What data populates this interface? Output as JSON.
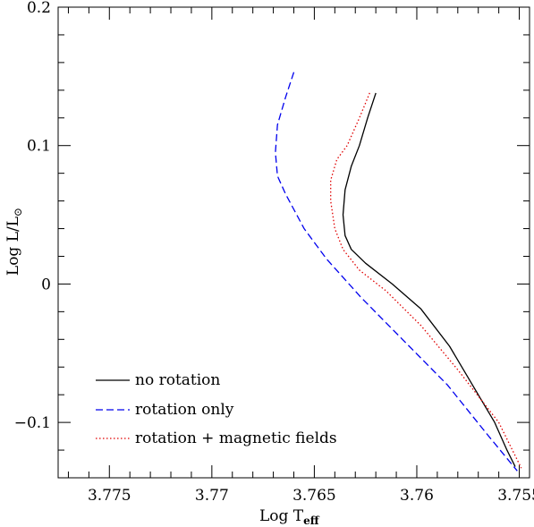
{
  "chart_data": {
    "type": "line",
    "xlabel": "Log T",
    "xlabel_sub": "eff",
    "ylabel": "Log L/L",
    "ylabel_sub": "⊙",
    "xlim": [
      3.7775,
      3.7545
    ],
    "ylim": [
      -0.14,
      0.2
    ],
    "x_inverted": true,
    "x_ticks": [
      3.775,
      3.77,
      3.765,
      3.76,
      3.755
    ],
    "x_tick_labels": [
      "3.775",
      "3.77",
      "3.765",
      "3.76",
      "3.755"
    ],
    "y_ticks": [
      -0.1,
      0,
      0.1,
      0.2
    ],
    "y_tick_labels": [
      "−0.1",
      "0",
      "0.1",
      "0.2"
    ],
    "grid": false,
    "legend_position": "bottom-left",
    "series": [
      {
        "name": "no rotation",
        "color": "#000000",
        "style": "solid",
        "x": [
          3.762,
          3.7624,
          3.7628,
          3.7632,
          3.7635,
          3.7636,
          3.7635,
          3.7632,
          3.7625,
          3.7612,
          3.7598,
          3.7584,
          3.7572,
          3.7562,
          3.7556,
          3.7552
        ],
        "y": [
          0.138,
          0.12,
          0.1,
          0.085,
          0.068,
          0.05,
          0.035,
          0.025,
          0.015,
          0.0,
          -0.018,
          -0.045,
          -0.075,
          -0.1,
          -0.12,
          -0.132
        ]
      },
      {
        "name": "rotation only",
        "color": "#0000ee",
        "style": "dashed",
        "x": [
          3.766,
          3.7664,
          3.7668,
          3.7669,
          3.7668,
          3.7664,
          3.7655,
          3.7644,
          3.7627,
          3.7607,
          3.7585,
          3.7566,
          3.7551
        ],
        "y": [
          0.153,
          0.135,
          0.115,
          0.095,
          0.078,
          0.065,
          0.04,
          0.018,
          -0.01,
          -0.04,
          -0.073,
          -0.108,
          -0.135
        ]
      },
      {
        "name": "rotation + magnetic fields",
        "color": "#e00000",
        "style": "dotted",
        "x": [
          3.7623,
          3.7628,
          3.7634,
          3.7639,
          3.7642,
          3.7642,
          3.764,
          3.7636,
          3.7628,
          3.7615,
          3.7598,
          3.758,
          3.756,
          3.7549
        ],
        "y": [
          0.138,
          0.12,
          0.1,
          0.09,
          0.075,
          0.06,
          0.04,
          0.025,
          0.01,
          -0.005,
          -0.03,
          -0.062,
          -0.1,
          -0.133
        ]
      }
    ]
  }
}
